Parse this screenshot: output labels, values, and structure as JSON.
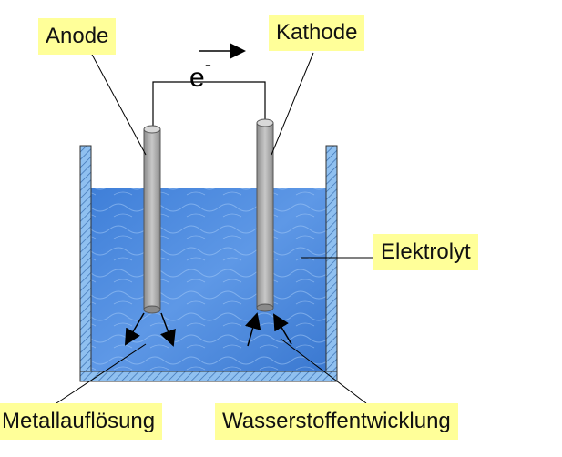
{
  "labels": {
    "anode": "Anode",
    "cathode": "Kathode",
    "electrolyte": "Elektrolyt",
    "metal_dissolution": "Metallauflösung",
    "hydrogen_evolution": "Wasserstoffentwicklung"
  },
  "electron": {
    "symbol": "e",
    "charge": "-"
  },
  "colors": {
    "label_background": "#ffff99",
    "electrolyte": "#4a86dc",
    "vessel_wall": "#8fc0f0",
    "electrode": "#a8a8a8"
  }
}
